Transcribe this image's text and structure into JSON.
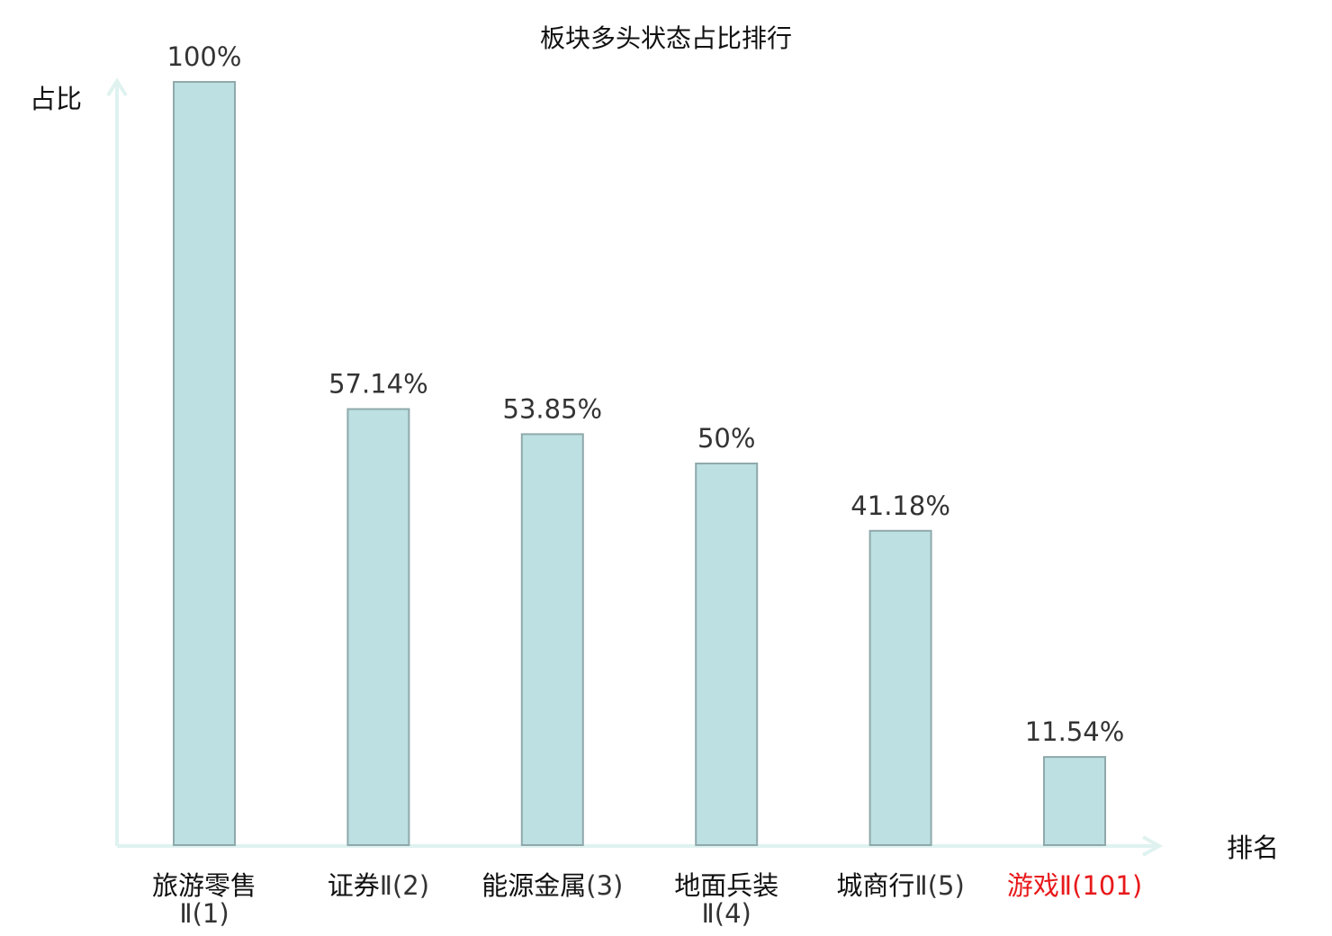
{
  "chart_data": {
    "type": "bar",
    "title": "板块多头状态占比排行",
    "ylabel": "占比",
    "xlabel": "排名",
    "ylim": [
      0,
      100
    ],
    "grid": false,
    "unit": "%",
    "categories": [
      {
        "name": "旅游零售",
        "rank_label": "Ⅱ(1)",
        "highlight": false
      },
      {
        "name": "证券",
        "rank_label": "Ⅱ(2)",
        "highlight": false
      },
      {
        "name": "能源金属",
        "rank_label": "(3)",
        "highlight": false
      },
      {
        "name": "地面兵装",
        "rank_label": "Ⅱ(4)",
        "highlight": false
      },
      {
        "name": "城商行",
        "rank_label": "Ⅱ(5)",
        "highlight": false
      },
      {
        "name": "游戏",
        "rank_label": "Ⅱ(101)",
        "highlight": true
      }
    ],
    "values": [
      100,
      57.14,
      53.85,
      50,
      41.18,
      11.54
    ],
    "value_labels": [
      "100%",
      "57.14%",
      "53.85%",
      "50%",
      "41.18%",
      "11.54%"
    ],
    "colors": {
      "bar_fill": "#bde0e2",
      "bar_stroke": "#8fa9ab",
      "axis": "#dff2ef",
      "text": "#111111",
      "highlight_text": "#e8191b",
      "rank_text": "#333333"
    }
  }
}
